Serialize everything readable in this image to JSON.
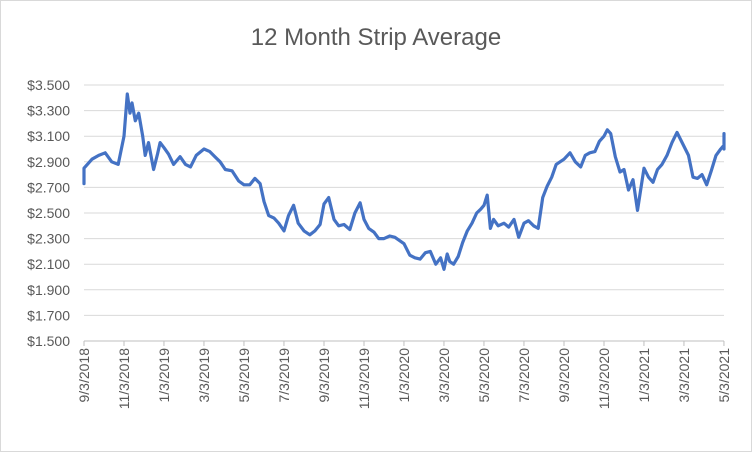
{
  "chart_data": {
    "type": "line",
    "title": "12 Month Strip Average",
    "xlabel": "",
    "ylabel": "",
    "ylim": [
      1.5,
      3.5
    ],
    "y_ticks": [
      "$1.500",
      "$1.700",
      "$1.900",
      "$2.100",
      "$2.300",
      "$2.500",
      "$2.700",
      "$2.900",
      "$3.100",
      "$3.300",
      "$3.500"
    ],
    "x_tick_labels": [
      "9/3/2018",
      "11/3/2018",
      "1/3/2019",
      "3/3/2019",
      "5/3/2019",
      "7/3/2019",
      "9/3/2019",
      "11/3/2019",
      "1/3/2020",
      "3/3/2020",
      "5/3/2020",
      "7/3/2020",
      "9/3/2020",
      "11/3/2020",
      "1/3/2021",
      "3/3/2021",
      "5/3/2021"
    ],
    "grid": true,
    "legend": "none",
    "series_color": "#4472c4",
    "series": [
      {
        "x": [
          "2018-08-10",
          "2018-08-20",
          "2018-09-03",
          "2018-09-15",
          "2018-09-25",
          "2018-10-05",
          "2018-10-15",
          "2018-10-25",
          "2018-11-03",
          "2018-11-08",
          "2018-11-12",
          "2018-11-15",
          "2018-11-20",
          "2018-11-25",
          "2018-12-01",
          "2018-12-05",
          "2018-12-10",
          "2018-12-18",
          "2018-12-24",
          "2018-12-28",
          "2019-01-03",
          "2019-01-10",
          "2019-01-18",
          "2019-01-28",
          "2019-02-05",
          "2019-02-12",
          "2019-02-20",
          "2019-03-03",
          "2019-03-12",
          "2019-03-20",
          "2019-03-28",
          "2019-04-05",
          "2019-04-15",
          "2019-04-25",
          "2019-05-03",
          "2019-05-12",
          "2019-05-20",
          "2019-05-28",
          "2019-06-03",
          "2019-06-10",
          "2019-06-18",
          "2019-06-25",
          "2019-07-03",
          "2019-07-10",
          "2019-07-18",
          "2019-07-25",
          "2019-08-03",
          "2019-08-12",
          "2019-08-20",
          "2019-08-28",
          "2019-09-03",
          "2019-09-10",
          "2019-09-18",
          "2019-09-25",
          "2019-10-03",
          "2019-10-12",
          "2019-10-20",
          "2019-10-28",
          "2019-11-03",
          "2019-11-10",
          "2019-11-18",
          "2019-11-25",
          "2019-12-03",
          "2019-12-12",
          "2019-12-20",
          "2020-01-03",
          "2020-01-12",
          "2020-01-20",
          "2020-01-28",
          "2020-02-05",
          "2020-02-12",
          "2020-02-20",
          "2020-02-27",
          "2020-03-03",
          "2020-03-08",
          "2020-03-12",
          "2020-03-18",
          "2020-03-25",
          "2020-04-01",
          "2020-04-08",
          "2020-04-15",
          "2020-04-22",
          "2020-04-28",
          "2020-05-03",
          "2020-05-08",
          "2020-05-13",
          "2020-05-18",
          "2020-05-25",
          "2020-06-03",
          "2020-06-10",
          "2020-06-18",
          "2020-06-25",
          "2020-07-03",
          "2020-07-10",
          "2020-07-18",
          "2020-07-25",
          "2020-08-01",
          "2020-08-08",
          "2020-08-15",
          "2020-08-22",
          "2020-09-03",
          "2020-09-12",
          "2020-09-20",
          "2020-09-28",
          "2020-10-05",
          "2020-10-12",
          "2020-10-20",
          "2020-10-27",
          "2020-11-03",
          "2020-11-08",
          "2020-11-13",
          "2020-11-20",
          "2020-11-27",
          "2020-12-03",
          "2020-12-10",
          "2020-12-17",
          "2020-12-24",
          "2021-01-03",
          "2021-01-10",
          "2021-01-17",
          "2021-01-24",
          "2021-01-31",
          "2021-02-07",
          "2021-02-14",
          "2021-02-21",
          "2021-03-03",
          "2021-03-10",
          "2021-03-17",
          "2021-03-24",
          "2021-03-31",
          "2021-04-07",
          "2021-04-14",
          "2021-04-21",
          "2021-04-28",
          "2021-05-03",
          "2021-05-08",
          "2021-05-13",
          "2021-05-17"
        ],
        "values": [
          2.8,
          2.73,
          2.85,
          2.92,
          2.95,
          2.97,
          2.9,
          2.88,
          3.1,
          3.43,
          3.28,
          3.36,
          3.22,
          3.28,
          3.1,
          2.95,
          3.05,
          2.84,
          2.96,
          3.05,
          3.01,
          2.96,
          2.88,
          2.94,
          2.88,
          2.86,
          2.95,
          3.0,
          2.98,
          2.94,
          2.9,
          2.84,
          2.83,
          2.75,
          2.72,
          2.72,
          2.77,
          2.73,
          2.59,
          2.48,
          2.46,
          2.42,
          2.36,
          2.48,
          2.56,
          2.42,
          2.36,
          2.33,
          2.36,
          2.41,
          2.57,
          2.62,
          2.45,
          2.4,
          2.41,
          2.37,
          2.5,
          2.58,
          2.45,
          2.38,
          2.35,
          2.3,
          2.3,
          2.32,
          2.31,
          2.26,
          2.17,
          2.15,
          2.14,
          2.19,
          2.2,
          2.1,
          2.15,
          2.06,
          2.18,
          2.12,
          2.1,
          2.16,
          2.27,
          2.36,
          2.42,
          2.5,
          2.53,
          2.56,
          2.64,
          2.38,
          2.45,
          2.4,
          2.42,
          2.39,
          2.45,
          2.31,
          2.42,
          2.44,
          2.4,
          2.38,
          2.62,
          2.71,
          2.78,
          2.88,
          2.92,
          2.97,
          2.9,
          2.86,
          2.95,
          2.97,
          2.98,
          3.06,
          3.1,
          3.15,
          3.12,
          2.94,
          2.82,
          2.84,
          2.68,
          2.76,
          2.52,
          2.85,
          2.78,
          2.74,
          2.84,
          2.88,
          2.95,
          3.05,
          3.13,
          3.02,
          2.95,
          2.78,
          2.77,
          2.8,
          2.72,
          2.83,
          2.95,
          3.0,
          3.03,
          3.05,
          3.12,
          3.0
        ]
      }
    ]
  }
}
